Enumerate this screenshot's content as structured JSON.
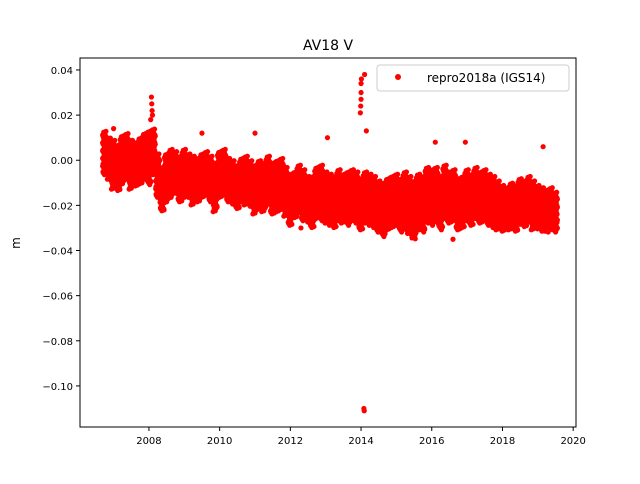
{
  "chart_data": {
    "type": "scatter",
    "title": "AV18 V",
    "xlabel": "",
    "ylabel": "m",
    "xlim": [
      2006.05,
      2020.08
    ],
    "ylim": [
      -0.1182,
      0.0453
    ],
    "xticks": [
      2008,
      2010,
      2012,
      2014,
      2016,
      2018,
      2020
    ],
    "xtick_labels": [
      "2008",
      "2010",
      "2012",
      "2014",
      "2016",
      "2018",
      "2020"
    ],
    "yticks": [
      0.04,
      0.02,
      0.0,
      -0.02,
      -0.04,
      -0.06,
      -0.08,
      -0.1
    ],
    "ytick_labels": [
      "0.04",
      "0.02",
      "0.00",
      "−0.02",
      "−0.04",
      "−0.06",
      "−0.08",
      "−0.10"
    ],
    "legend": {
      "placement": "top-right",
      "entries": [
        "repro2018a (IGS14)"
      ]
    },
    "series": [
      {
        "name": "repro2018a (IGS14)",
        "color": "#ff0000",
        "x_start": 2006.7,
        "x_step": 0.125,
        "y_mid": [
          0.002,
          0.0,
          -0.002,
          -0.004,
          -0.001,
          0.001,
          -0.003,
          -0.002,
          -0.001,
          0.002,
          0.0,
          0.004,
          -0.006,
          -0.012,
          -0.008,
          -0.006,
          -0.005,
          -0.008,
          -0.007,
          -0.006,
          -0.009,
          -0.008,
          -0.007,
          -0.006,
          -0.008,
          -0.01,
          -0.006,
          -0.005,
          -0.008,
          -0.009,
          -0.011,
          -0.008,
          -0.009,
          -0.01,
          -0.012,
          -0.01,
          -0.011,
          -0.009,
          -0.012,
          -0.011,
          -0.01,
          -0.013,
          -0.016,
          -0.014,
          -0.013,
          -0.015,
          -0.017,
          -0.018,
          -0.014,
          -0.015,
          -0.016,
          -0.017,
          -0.018,
          -0.015,
          -0.016,
          -0.017,
          -0.015,
          -0.016,
          -0.019,
          -0.016,
          -0.017,
          -0.018,
          -0.02,
          -0.021,
          -0.019,
          -0.018,
          -0.017,
          -0.02,
          -0.019,
          -0.021,
          -0.022,
          -0.019,
          -0.02,
          -0.017,
          -0.018,
          -0.016,
          -0.019,
          -0.015,
          -0.017,
          -0.016,
          -0.019,
          -0.018,
          -0.016,
          -0.018,
          -0.015,
          -0.017,
          -0.016,
          -0.018,
          -0.019,
          -0.02,
          -0.022,
          -0.023,
          -0.021,
          -0.022,
          -0.019,
          -0.02,
          -0.018,
          -0.021,
          -0.022,
          -0.024,
          -0.025,
          -0.023,
          -0.024
        ],
        "y_high": [
          0.012,
          0.009,
          0.008,
          0.006,
          0.01,
          0.011,
          0.008,
          0.007,
          0.009,
          0.011,
          0.012,
          0.013,
          0.002,
          -0.004,
          0.002,
          0.004,
          0.003,
          0.001,
          0.004,
          0.002,
          0.001,
          0.0,
          0.002,
          0.003,
          0.001,
          -0.002,
          0.003,
          0.004,
          0.0,
          -0.001,
          -0.003,
          0.0,
          0.001,
          -0.001,
          -0.003,
          -0.001,
          -0.002,
          0.001,
          -0.002,
          -0.001,
          0.0,
          -0.004,
          -0.007,
          -0.006,
          -0.003,
          -0.005,
          -0.008,
          -0.008,
          -0.004,
          -0.003,
          -0.006,
          -0.007,
          -0.008,
          -0.005,
          -0.007,
          -0.006,
          -0.005,
          -0.006,
          -0.009,
          -0.006,
          -0.007,
          -0.008,
          -0.01,
          -0.011,
          -0.009,
          -0.008,
          -0.007,
          -0.009,
          -0.006,
          -0.008,
          -0.01,
          -0.007,
          -0.008,
          -0.004,
          -0.005,
          -0.004,
          -0.008,
          -0.003,
          -0.006,
          -0.005,
          -0.009,
          -0.008,
          -0.005,
          -0.007,
          -0.004,
          -0.006,
          -0.005,
          -0.007,
          -0.008,
          -0.01,
          -0.012,
          -0.013,
          -0.011,
          -0.012,
          -0.009,
          -0.01,
          -0.008,
          -0.01,
          -0.012,
          -0.013,
          -0.014,
          -0.013,
          -0.015
        ],
        "y_low": [
          -0.006,
          -0.008,
          -0.012,
          -0.013,
          -0.01,
          -0.008,
          -0.012,
          -0.011,
          -0.01,
          -0.008,
          -0.01,
          -0.006,
          -0.016,
          -0.022,
          -0.018,
          -0.016,
          -0.014,
          -0.018,
          -0.016,
          -0.016,
          -0.019,
          -0.018,
          -0.016,
          -0.015,
          -0.018,
          -0.022,
          -0.016,
          -0.015,
          -0.018,
          -0.019,
          -0.021,
          -0.018,
          -0.019,
          -0.02,
          -0.023,
          -0.021,
          -0.022,
          -0.019,
          -0.023,
          -0.022,
          -0.021,
          -0.024,
          -0.028,
          -0.025,
          -0.023,
          -0.026,
          -0.027,
          -0.029,
          -0.025,
          -0.026,
          -0.027,
          -0.028,
          -0.029,
          -0.026,
          -0.027,
          -0.028,
          -0.026,
          -0.027,
          -0.03,
          -0.027,
          -0.028,
          -0.029,
          -0.031,
          -0.033,
          -0.03,
          -0.029,
          -0.028,
          -0.031,
          -0.03,
          -0.032,
          -0.034,
          -0.03,
          -0.031,
          -0.027,
          -0.028,
          -0.026,
          -0.03,
          -0.025,
          -0.027,
          -0.026,
          -0.03,
          -0.029,
          -0.026,
          -0.028,
          -0.025,
          -0.027,
          -0.026,
          -0.028,
          -0.029,
          -0.03,
          -0.031,
          -0.03,
          -0.03,
          -0.031,
          -0.028,
          -0.029,
          -0.027,
          -0.03,
          -0.03,
          -0.031,
          -0.031,
          -0.03,
          -0.031
        ],
        "outliers": [
          [
            2008.05,
            0.018
          ],
          [
            2008.07,
            0.028
          ],
          [
            2008.08,
            0.025
          ],
          [
            2008.09,
            0.022
          ],
          [
            2008.1,
            0.02
          ],
          [
            2013.98,
            0.021
          ],
          [
            2013.99,
            0.024
          ],
          [
            2014.0,
            0.027
          ],
          [
            2014.0,
            0.03
          ],
          [
            2014.0,
            0.034
          ],
          [
            2014.01,
            0.036
          ],
          [
            2014.1,
            0.038
          ],
          [
            2014.15,
            0.013
          ],
          [
            2014.08,
            -0.11
          ],
          [
            2014.09,
            -0.111
          ],
          [
            2013.05,
            0.01
          ],
          [
            2011.0,
            0.012
          ],
          [
            2009.5,
            0.012
          ],
          [
            2016.1,
            0.008
          ],
          [
            2019.15,
            0.006
          ],
          [
            2016.6,
            -0.035
          ],
          [
            2012.3,
            -0.03
          ],
          [
            2007.0,
            0.014
          ],
          [
            2016.95,
            0.008
          ]
        ]
      }
    ]
  }
}
